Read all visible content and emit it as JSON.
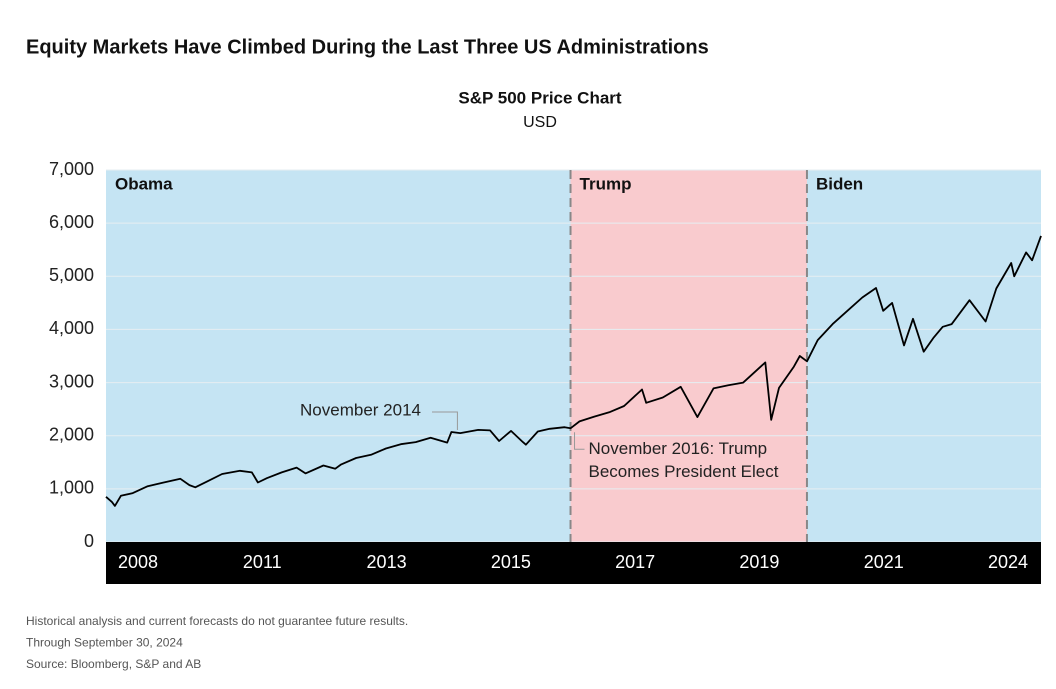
{
  "chart_data": {
    "type": "line",
    "title": "Equity Markets Have Climbed During the Last Three US Administrations",
    "subtitle": "S&P 500 Price Chart",
    "unit": "USD",
    "color": "#000000",
    "regions": [
      {
        "name": "Obama",
        "start": 2009.05,
        "end": 2016.85,
        "color": "#c5e4f3"
      },
      {
        "name": "Trump",
        "start": 2016.85,
        "end": 2020.82,
        "color": "#f9cbce"
      },
      {
        "name": "Biden",
        "start": 2020.82,
        "end": 2024.75,
        "color": "#c5e4f3"
      }
    ],
    "xlabels": [
      "2008",
      "2011",
      "2013",
      "2015",
      "2017",
      "2019",
      "2021",
      "2024"
    ],
    "xlim": [
      2009.05,
      2024.75
    ],
    "ylim": [
      0,
      7000
    ],
    "yticks": [
      0,
      {
        "value": 1000,
        "label": "1,000"
      },
      {
        "value": 2000,
        "label": "2,000"
      },
      {
        "value": 3000,
        "label": "3,000"
      },
      {
        "value": 4000,
        "label": "4,000"
      },
      {
        "value": 5000,
        "label": "5,000"
      },
      {
        "value": 6000,
        "label": "6,000"
      },
      {
        "value": 7000,
        "label": "7,000"
      }
    ],
    "grid": true,
    "x": [
      2009.05,
      2009.15,
      2009.2,
      2009.3,
      2009.5,
      2009.75,
      2010.0,
      2010.3,
      2010.45,
      2010.55,
      2010.75,
      2011.0,
      2011.3,
      2011.5,
      2011.6,
      2011.75,
      2012.0,
      2012.25,
      2012.4,
      2012.7,
      2012.9,
      2013.0,
      2013.25,
      2013.5,
      2013.75,
      2014.0,
      2014.25,
      2014.5,
      2014.78,
      2014.85,
      2015.0,
      2015.3,
      2015.5,
      2015.65,
      2015.85,
      2016.05,
      2016.1,
      2016.3,
      2016.5,
      2016.75,
      2016.85,
      2017.0,
      2017.25,
      2017.5,
      2017.75,
      2018.05,
      2018.12,
      2018.4,
      2018.7,
      2018.98,
      2019.25,
      2019.5,
      2019.75,
      2020.12,
      2020.22,
      2020.35,
      2020.6,
      2020.7,
      2020.82,
      2021.0,
      2021.25,
      2021.5,
      2021.75,
      2021.98,
      2022.1,
      2022.25,
      2022.45,
      2022.6,
      2022.78,
      2022.95,
      2023.1,
      2023.25,
      2023.55,
      2023.82,
      2024.0,
      2024.25,
      2024.3,
      2024.5,
      2024.6,
      2024.75
    ],
    "values": [
      850,
      750,
      680,
      870,
      920,
      1050,
      1115,
      1190,
      1070,
      1030,
      1140,
      1280,
      1340,
      1310,
      1120,
      1200,
      1310,
      1400,
      1290,
      1440,
      1380,
      1460,
      1580,
      1640,
      1760,
      1840,
      1880,
      1960,
      1870,
      2070,
      2050,
      2110,
      2100,
      1900,
      2090,
      1880,
      1830,
      2080,
      2130,
      2160,
      2140,
      2270,
      2360,
      2440,
      2560,
      2870,
      2620,
      2720,
      2920,
      2350,
      2890,
      2950,
      3000,
      3380,
      2300,
      2900,
      3300,
      3500,
      3400,
      3800,
      4100,
      4350,
      4600,
      4780,
      4350,
      4500,
      3700,
      4200,
      3580,
      3850,
      4050,
      4100,
      4550,
      4150,
      4770,
      5250,
      5000,
      5450,
      5300,
      5760
    ],
    "annotations": [
      {
        "lines": [
          "November 2014"
        ],
        "x": 2014.85,
        "y": 2070
      },
      {
        "lines": [
          "November 2016: Trump",
          "Becomes President Elect"
        ],
        "x": 2016.85,
        "y": 2140
      }
    ],
    "notes": [
      "Historical analysis and current forecasts do not guarantee future results.",
      "Through September 30, 2024",
      "Source: Bloomberg, S&P and AB"
    ]
  }
}
